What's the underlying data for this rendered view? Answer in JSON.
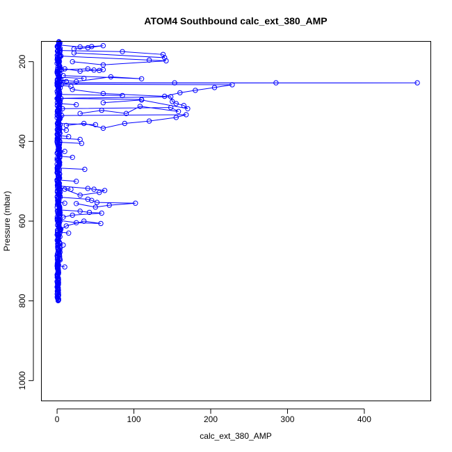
{
  "chart_data": {
    "type": "line",
    "title": "ATOM4 Southbound calc_ext_380_AMP",
    "xlabel": "calc_ext_380_AMP",
    "ylabel": "Pressure (mbar)",
    "xlim": [
      -20,
      487
    ],
    "ylim": [
      1050,
      150
    ],
    "y_reversed": true,
    "x_ticks": [
      0,
      100,
      200,
      300,
      400
    ],
    "y_ticks": [
      200,
      400,
      600,
      800,
      1000
    ],
    "grid": false,
    "marker": "open-circle",
    "color": "#0000ff",
    "series": [
      {
        "profile_core": {
          "pressure_range": [
            150,
            800
          ],
          "x_range": [
            0,
            4
          ]
        },
        "excursions": [
          {
            "x": [
              2,
              30,
              45,
              60,
              40,
              22
            ],
            "y": [
              158,
              163,
              162,
              160,
              165,
              168
            ]
          },
          {
            "x": [
              4,
              85,
              138,
              140,
              22
            ],
            "y": [
              172,
              175,
              182,
              190,
              178
            ]
          },
          {
            "x": [
              5,
              120,
              142,
              60,
              20
            ],
            "y": [
              186,
              196,
              198,
              208,
              200
            ]
          },
          {
            "x": [
              6,
              40,
              48,
              55,
              60,
              30,
              10
            ],
            "y": [
              220,
              218,
              221,
              222,
              220,
              224,
              218
            ]
          },
          {
            "x": [
              8,
              110,
              70,
              25,
              5
            ],
            "y": [
              235,
              243,
              238,
              250,
              246
            ]
          },
          {
            "x": [
              0,
              153,
              285,
              469,
              0
            ],
            "y": [
              253,
              253,
              253,
              253,
              254
            ]
          },
          {
            "x": [
              6,
              228,
              205,
              180,
              160,
              140,
              60,
              20
            ],
            "y": [
              257,
              258,
              265,
              272,
              278,
              287,
              280,
              270
            ]
          },
          {
            "x": [
              5,
              148,
              150,
              155,
              165,
              170,
              110,
              60
            ],
            "y": [
              292,
              288,
              300,
              305,
              310,
              318,
              296,
              303
            ]
          },
          {
            "x": [
              7,
              148,
              158,
              108,
              90,
              58,
              30
            ],
            "y": [
              318,
              315,
              325,
              312,
              330,
              322,
              330
            ]
          },
          {
            "x": [
              6,
              168,
              155,
              120,
              88,
              60,
              35,
              12
            ],
            "y": [
              335,
              333,
              340,
              349,
              355,
              367,
              355,
              360
            ]
          },
          {
            "x": [
              3,
              40,
              48,
              62,
              55,
              30,
              10
            ],
            "y": [
              512,
              518,
              520,
              523,
              528,
              535,
              520
            ]
          },
          {
            "x": [
              4,
              40,
              45,
              52,
              102,
              68,
              50,
              25
            ],
            "y": [
              540,
              545,
              548,
              553,
              555,
              560,
              565,
              556
            ]
          },
          {
            "x": [
              3,
              30,
              42,
              58,
              20,
              8
            ],
            "y": [
              572,
              575,
              578,
              580,
              585,
              590
            ]
          },
          {
            "x": [
              2,
              25,
              57,
              35,
              12,
              5
            ],
            "y": [
              598,
              604,
              606,
              600,
              612,
              620
            ]
          }
        ],
        "scatter_points": [
          {
            "x": 35,
            "y": 242
          },
          {
            "x": 12,
            "y": 250
          },
          {
            "x": 18,
            "y": 262
          },
          {
            "x": 85,
            "y": 285
          },
          {
            "x": 110,
            "y": 295
          },
          {
            "x": 25,
            "y": 308
          },
          {
            "x": 50,
            "y": 358
          },
          {
            "x": 12,
            "y": 372
          },
          {
            "x": 15,
            "y": 388
          },
          {
            "x": 30,
            "y": 395
          },
          {
            "x": 32,
            "y": 405
          },
          {
            "x": 10,
            "y": 425
          },
          {
            "x": 20,
            "y": 440
          },
          {
            "x": 36,
            "y": 470
          },
          {
            "x": 25,
            "y": 500
          },
          {
            "x": 18,
            "y": 520
          },
          {
            "x": 10,
            "y": 555
          },
          {
            "x": 15,
            "y": 630
          },
          {
            "x": 8,
            "y": 660
          },
          {
            "x": 10,
            "y": 715
          }
        ]
      }
    ]
  }
}
